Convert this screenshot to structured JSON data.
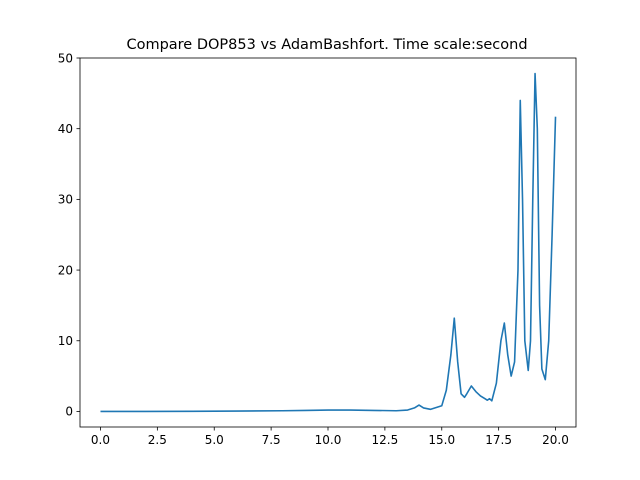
{
  "chart_data": {
    "type": "line",
    "title": "Compare DOP853 vs AdamBashfort. Time scale:second",
    "xlabel": "",
    "ylabel": "",
    "xlim": [
      -0.9,
      20.9
    ],
    "ylim": [
      -2.2,
      50
    ],
    "xticks": [
      0.0,
      2.5,
      5.0,
      7.5,
      10.0,
      12.5,
      15.0,
      17.5,
      20.0
    ],
    "xtick_labels": [
      "0.0",
      "2.5",
      "5.0",
      "7.5",
      "10.0",
      "12.5",
      "15.0",
      "17.5",
      "20.0"
    ],
    "yticks": [
      0,
      10,
      20,
      30,
      40,
      50
    ],
    "ytick_labels": [
      "0",
      "10",
      "20",
      "30",
      "40",
      "50"
    ],
    "grid": false,
    "line_color": "#1f77b4",
    "series": [
      {
        "x": [
          0.0,
          2.0,
          4.0,
          6.0,
          8.0,
          9.0,
          10.0,
          11.0,
          12.0,
          13.0,
          13.5,
          13.8,
          14.0,
          14.2,
          14.5,
          15.0,
          15.2,
          15.4,
          15.55,
          15.7,
          15.85,
          16.0,
          16.1,
          16.3,
          16.5,
          16.7,
          16.9,
          17.0,
          17.1,
          17.2,
          17.4,
          17.6,
          17.75,
          17.9,
          18.05,
          18.2,
          18.35,
          18.45,
          18.55,
          18.65,
          18.8,
          18.9,
          19.0,
          19.1,
          19.2,
          19.3,
          19.4,
          19.55,
          19.7,
          19.85,
          20.0
        ],
        "y": [
          0.0,
          0.0,
          0.02,
          0.05,
          0.1,
          0.15,
          0.2,
          0.2,
          0.15,
          0.1,
          0.2,
          0.5,
          0.9,
          0.5,
          0.3,
          0.8,
          3.0,
          8.0,
          13.2,
          7.0,
          2.5,
          2.0,
          2.5,
          3.6,
          2.8,
          2.2,
          1.8,
          1.6,
          1.8,
          1.5,
          4.0,
          10.0,
          12.5,
          8.0,
          5.0,
          7.0,
          20.0,
          44.0,
          30.0,
          10.0,
          5.8,
          10.0,
          30.0,
          47.8,
          40.0,
          15.0,
          6.0,
          4.5,
          10.0,
          25.0,
          41.7
        ]
      }
    ]
  }
}
